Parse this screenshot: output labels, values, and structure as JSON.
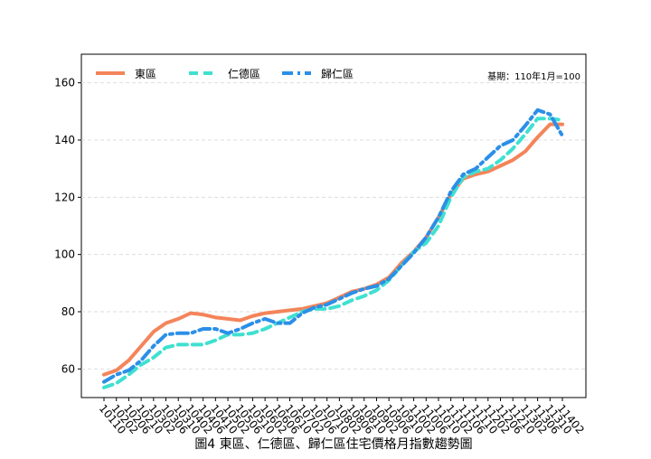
{
  "chart_data": {
    "type": "line",
    "title": "圖4 東區、仁德區、歸仁區住宅價格月指數趨勢圖",
    "annotation": "基期：110年1月=100",
    "categories": [
      "10110",
      "10202",
      "10206",
      "10210",
      "10302",
      "10306",
      "10310",
      "10402",
      "10406",
      "10410",
      "10502",
      "10506",
      "10510",
      "10602",
      "10606",
      "10610",
      "10702",
      "10706",
      "10710",
      "10802",
      "10806",
      "10810",
      "10902",
      "10906",
      "10910",
      "11002",
      "11006",
      "11010",
      "11102",
      "11106",
      "11110",
      "11202",
      "11206",
      "11210",
      "11302",
      "11306",
      "11310",
      "11402"
    ],
    "series": [
      {
        "name": "東區",
        "color": "#f4845a",
        "dash": "solid",
        "values": [
          58,
          59.5,
          63,
          68,
          73,
          76,
          77.5,
          79.5,
          79,
          78,
          77.5,
          77,
          78.5,
          79.5,
          80,
          80.5,
          81,
          82,
          83,
          85,
          87,
          88,
          89.5,
          92,
          97,
          101,
          106,
          113,
          121,
          126.5,
          128,
          129,
          131,
          133,
          136,
          141,
          145.5,
          145.5
        ]
      },
      {
        "name": "仁德區",
        "color": "#40e0d0",
        "dash": "dashed",
        "values": [
          53.5,
          55,
          58,
          61.5,
          64,
          67.5,
          68.5,
          68.5,
          68.5,
          70,
          72,
          72,
          72.5,
          74,
          76,
          78,
          80,
          81,
          81,
          82,
          84,
          85.5,
          87.5,
          91,
          96,
          101,
          104,
          110,
          120,
          127,
          129,
          130,
          133,
          137,
          142,
          147.5,
          147.5,
          147
        ]
      },
      {
        "name": "歸仁區",
        "color": "#2b8fe8",
        "dash": "dashdot",
        "values": [
          55.5,
          58,
          59.5,
          63,
          68,
          72,
          72.5,
          72.5,
          74,
          74,
          72.5,
          74,
          76,
          77.5,
          76,
          76,
          79.5,
          81.5,
          82.5,
          84.5,
          86.5,
          88,
          89,
          91.5,
          96,
          100.5,
          106,
          113,
          122,
          128,
          130,
          134,
          138,
          140,
          145,
          150.5,
          149,
          141.5
        ]
      }
    ],
    "ylim": [
      50,
      170
    ],
    "yticks": [
      60,
      80,
      100,
      120,
      140,
      160
    ],
    "grid": true,
    "legend": "upper left"
  }
}
